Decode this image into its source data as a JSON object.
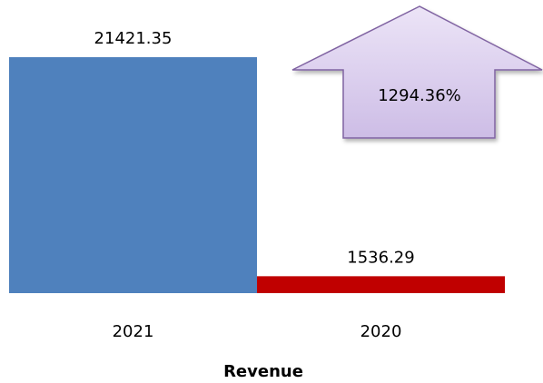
{
  "chart_data": {
    "type": "bar",
    "x_label": "Revenue",
    "categories": [
      "2021",
      "2020"
    ],
    "values": [
      21421.35,
      1536.29
    ],
    "colors": [
      "#4f81bd",
      "#c00000"
    ],
    "annotation": "1294.36%"
  }
}
